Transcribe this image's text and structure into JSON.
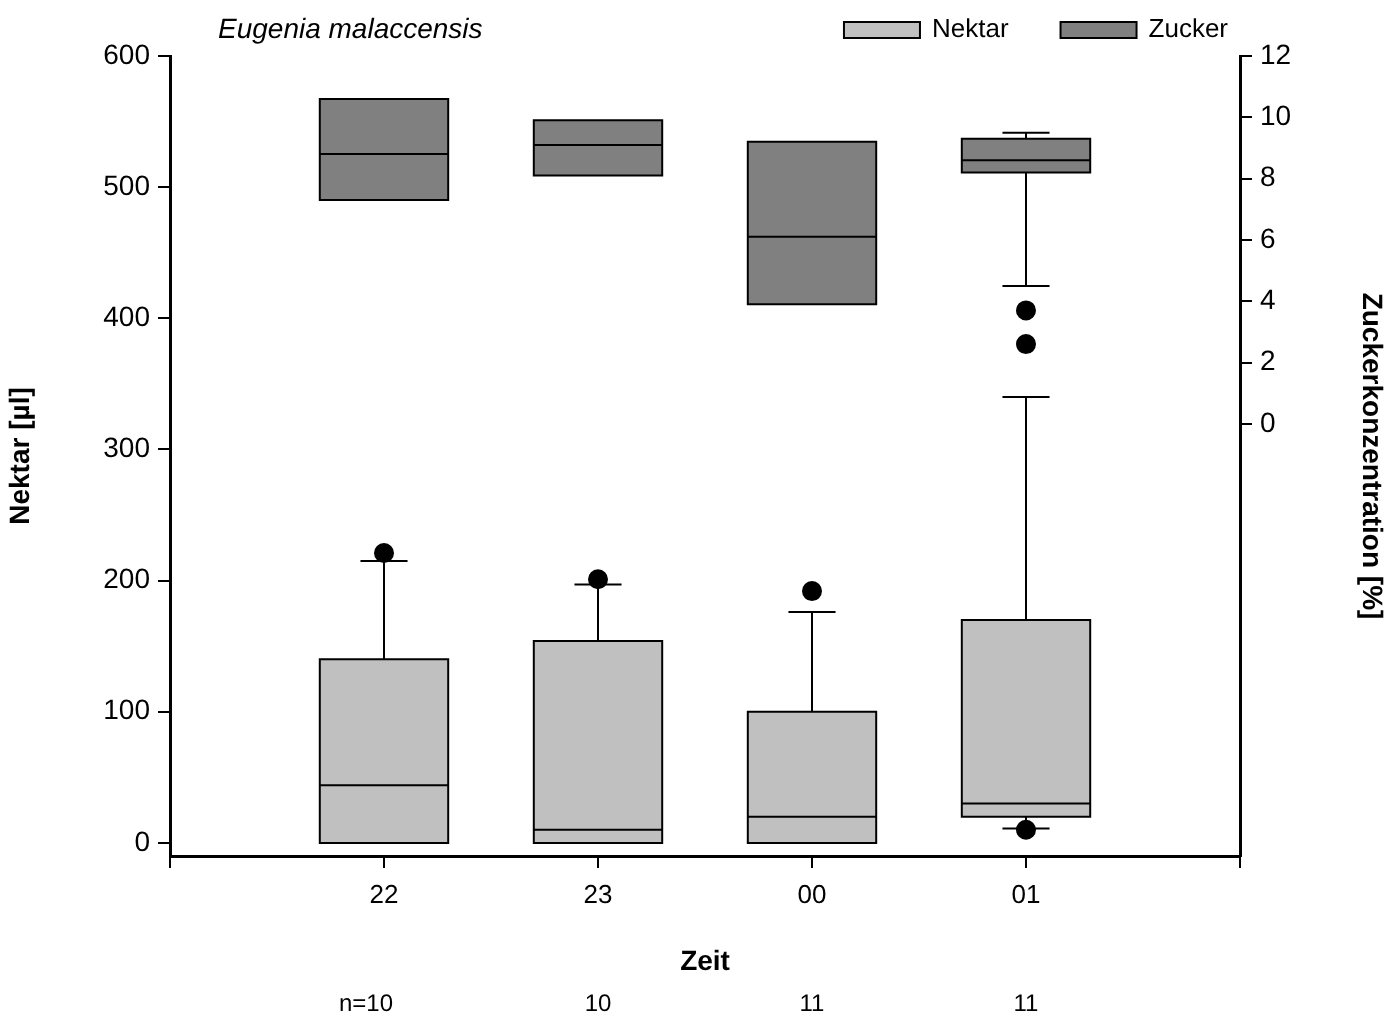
{
  "chart_data": {
    "type": "box",
    "title": "Eugenia malaccensis",
    "xlabel": "Zeit",
    "ylabel": "Nektar [µl]",
    "y2label": "Zuckerkonzentration [%]",
    "categories": [
      "22",
      "23",
      "00",
      "01"
    ],
    "series": [
      {
        "name": "Nektar",
        "color": "#c0c0c0",
        "boxes": [
          {
            "low": 0,
            "q1": 0,
            "median": 44,
            "q3": 140,
            "high": 215,
            "outliers": [
              221
            ]
          },
          {
            "low": 0,
            "q1": 0,
            "median": 10,
            "q3": 154,
            "high": 197,
            "outliers": [
              201
            ]
          },
          {
            "low": 0,
            "q1": 0,
            "median": 20,
            "q3": 100,
            "high": 176,
            "outliers": [
              192
            ]
          },
          {
            "low": 11,
            "q1": 20,
            "median": 30,
            "q3": 170,
            "high": 340,
            "outliers": [
              10
            ]
          }
        ]
      },
      {
        "name": "Zucker",
        "color": "#808080",
        "axis": "y2",
        "boxes": [
          {
            "low": 7.3,
            "q1": 7.3,
            "median": 8.8,
            "q3": 10.6,
            "high": 10.6
          },
          {
            "low": 8.1,
            "q1": 8.1,
            "median": 9.1,
            "q3": 9.9,
            "high": 9.9
          },
          {
            "low": 3.9,
            "q1": 3.9,
            "median": 6.1,
            "q3": 9.2,
            "high": 9.2
          },
          {
            "low": 4.5,
            "q1": 8.2,
            "median": 8.6,
            "q3": 9.3,
            "high": 9.5,
            "outliers": [
              3.7,
              2.6
            ]
          }
        ]
      }
    ],
    "ylim": [
      -10,
      600
    ],
    "yticks": [
      0,
      100,
      200,
      300,
      400,
      500,
      600
    ],
    "y2lim": [
      -14.1,
      12
    ],
    "y2ticks": [
      0,
      2,
      4,
      6,
      8,
      10,
      12
    ],
    "legend": "top right",
    "marker": "circle",
    "annotations": [
      "n=10",
      "10",
      "11",
      "11"
    ]
  }
}
